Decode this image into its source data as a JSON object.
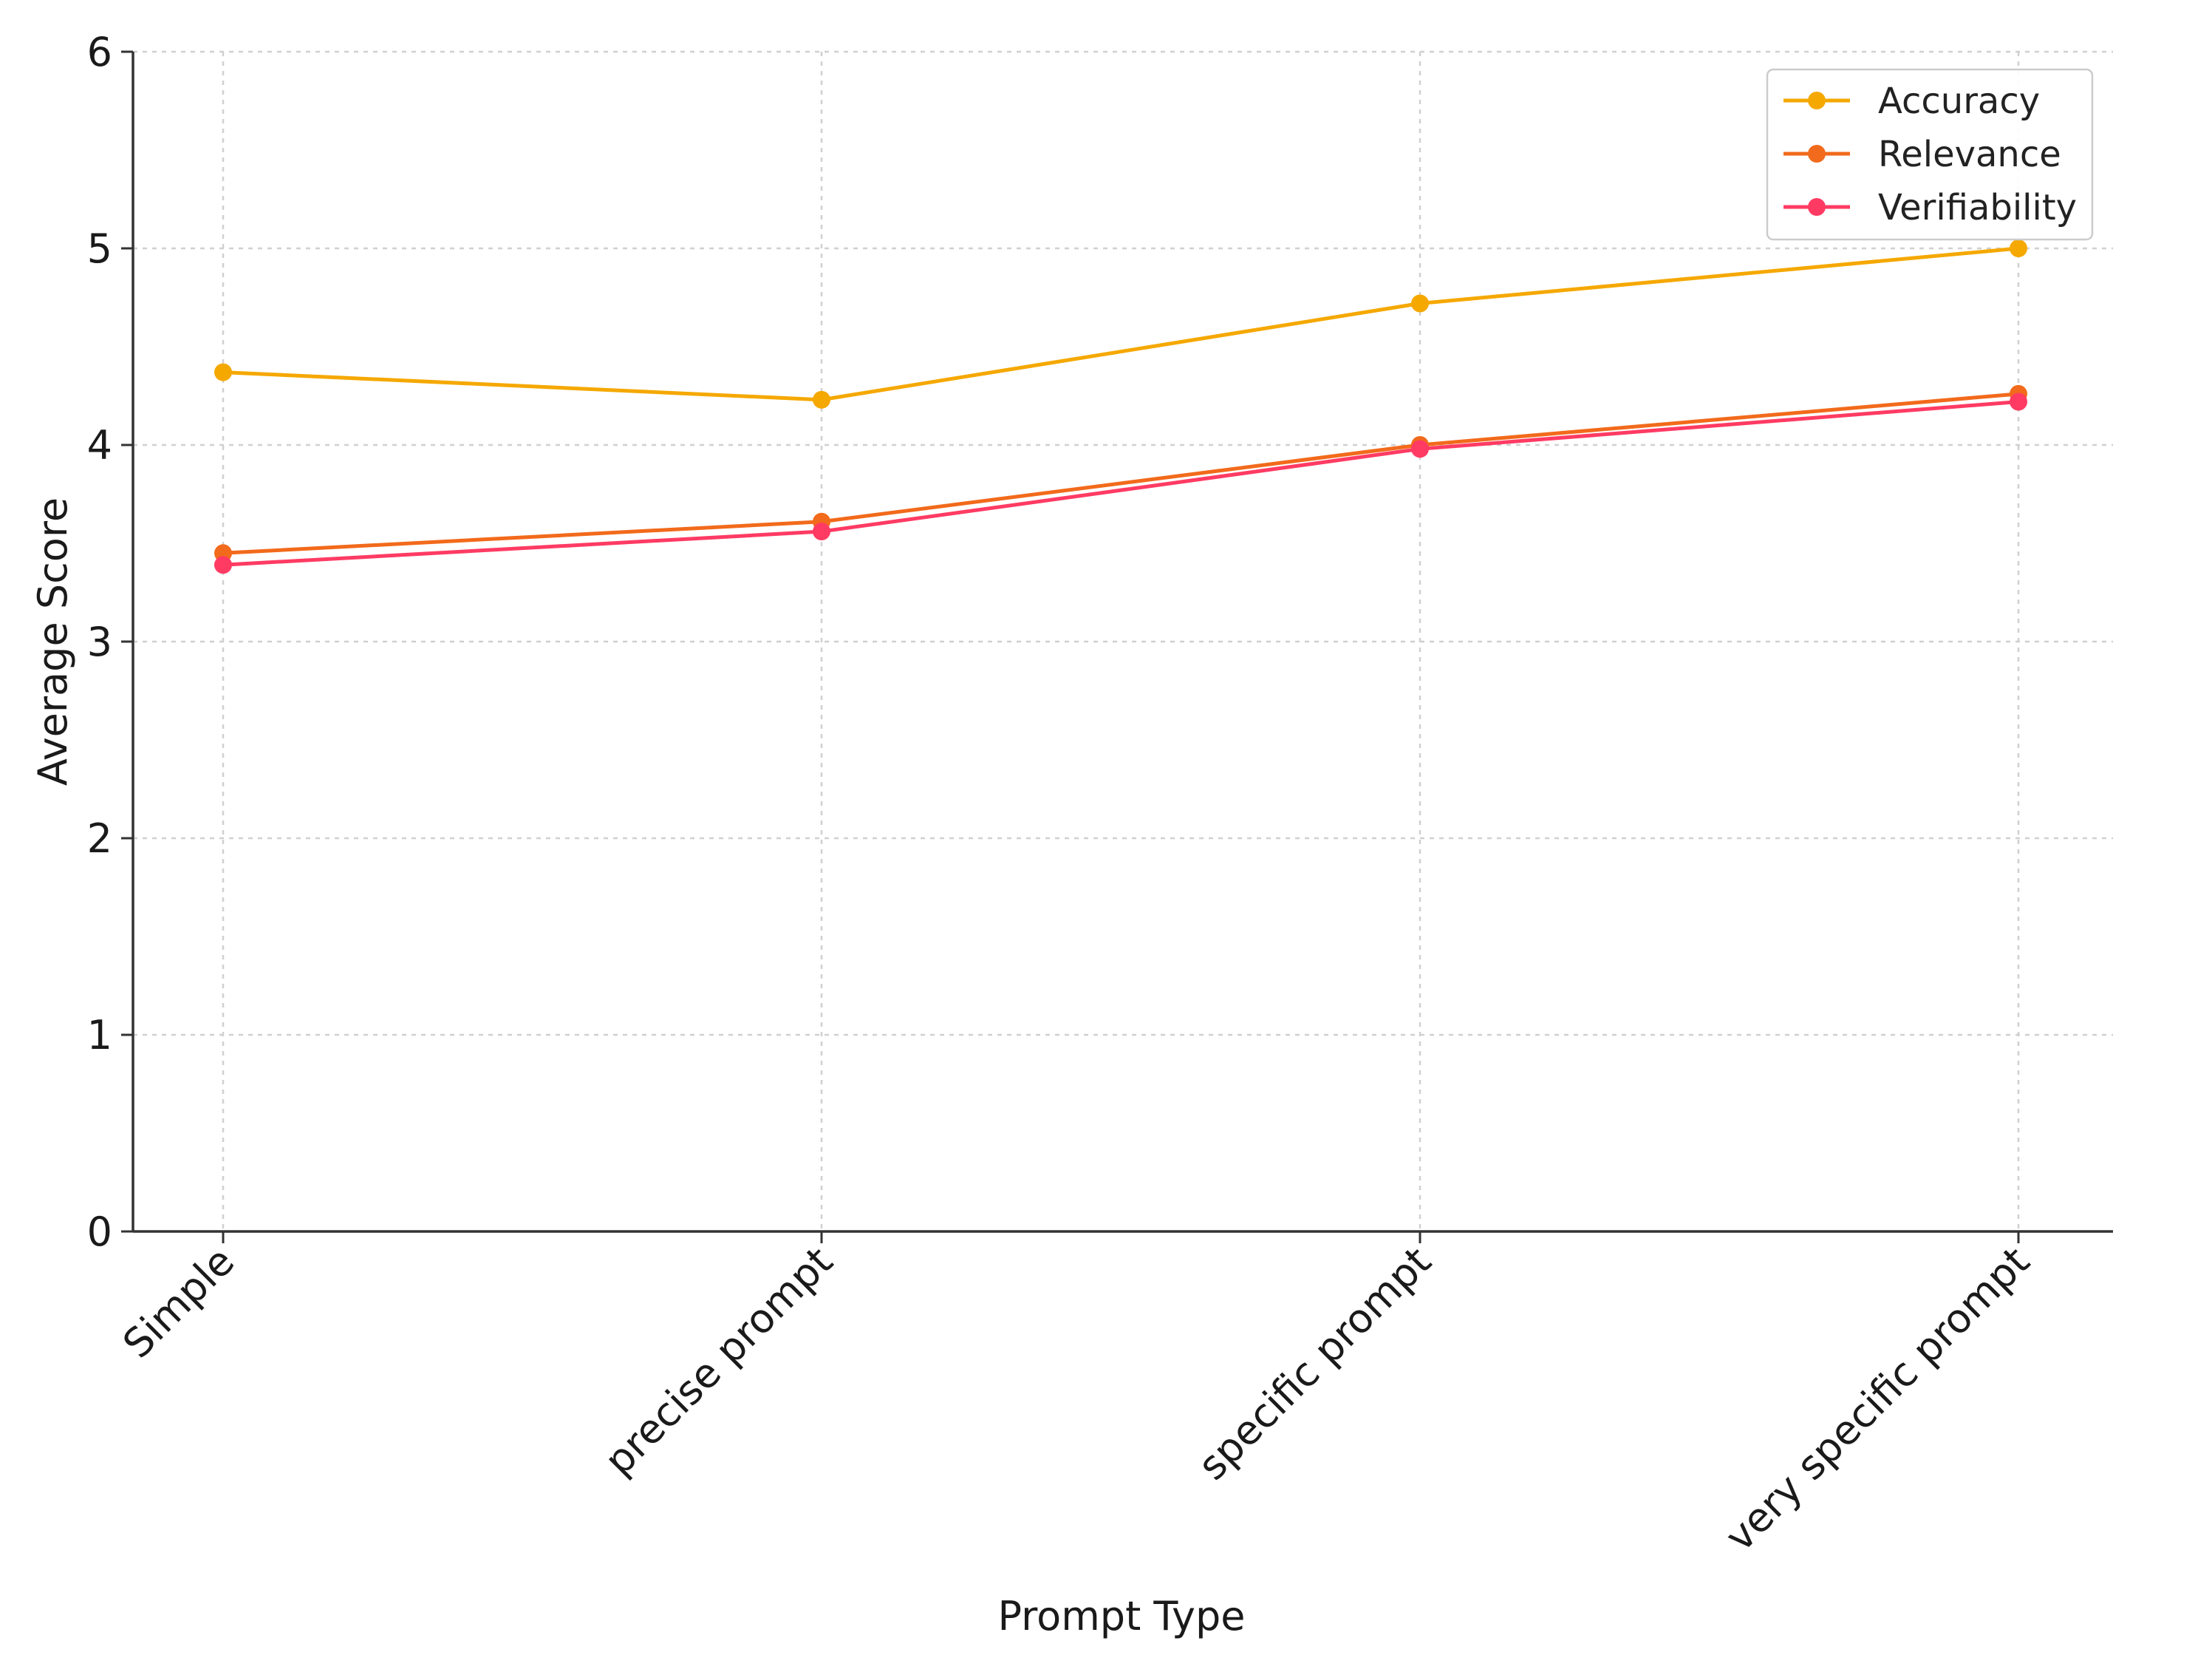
{
  "chart_data": {
    "type": "line",
    "title": "",
    "xlabel": "Prompt Type",
    "ylabel": "Average Score",
    "categories": [
      "Simple",
      "precise prompt",
      "specific prompt",
      "very specific prompt"
    ],
    "ylim": [
      0,
      6
    ],
    "yticks": [
      0,
      1,
      2,
      3,
      4,
      5,
      6
    ],
    "grid": true,
    "legend_position": "top-right",
    "series": [
      {
        "name": "Accuracy",
        "color": "#f5a800",
        "values": [
          4.37,
          4.23,
          4.72,
          5.0
        ]
      },
      {
        "name": "Relevance",
        "color": "#f26a1b",
        "values": [
          3.45,
          3.61,
          4.0,
          4.26
        ]
      },
      {
        "name": "Verifiability",
        "color": "#ff3b63",
        "values": [
          3.39,
          3.56,
          3.98,
          4.22
        ]
      }
    ]
  }
}
